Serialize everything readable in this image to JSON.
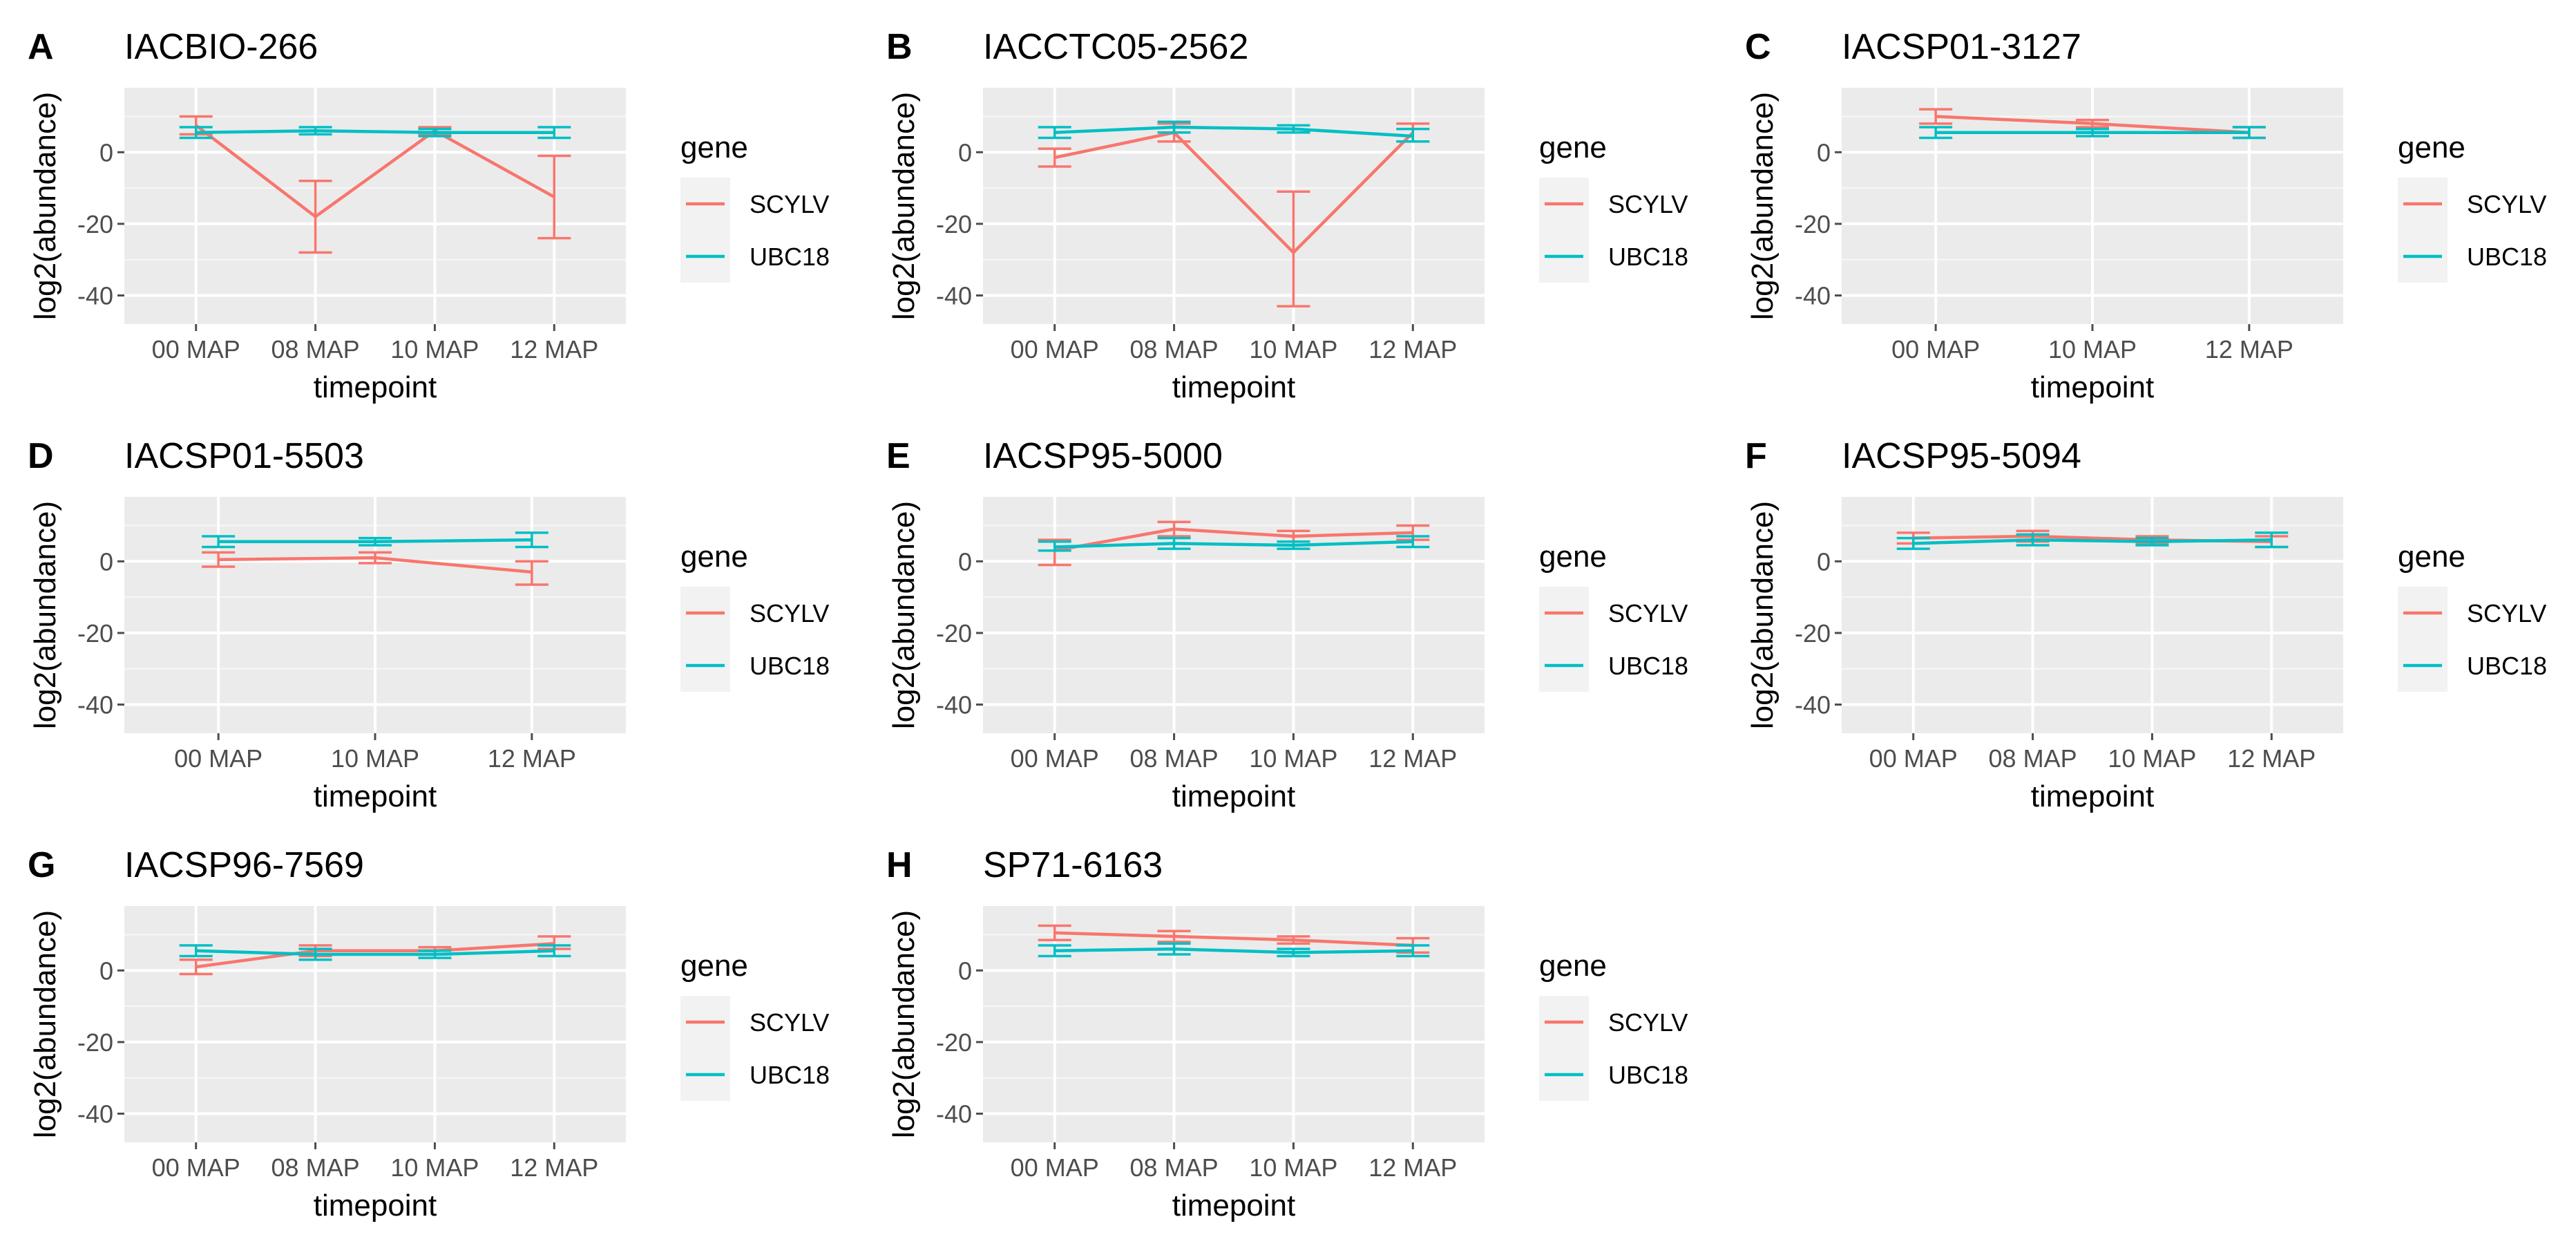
{
  "colors": {
    "panel_bg": "#EBEBEB",
    "grid": "#FFFFFF",
    "SCYLV": "#F8766D",
    "UBC18": "#00BFC4",
    "tick_text": "#4D4D4D",
    "text": "#000000",
    "legend_key_bg": "#F2F2F2"
  },
  "legend": {
    "title": "gene",
    "entries": [
      "SCYLV",
      "UBC18"
    ]
  },
  "chart_data": [
    {
      "panel": "A",
      "type": "line",
      "title": "IACBIO-266",
      "xlabel": "timepoint",
      "ylabel": "log2(abundance)",
      "categories": [
        "00 MAP",
        "08 MAP",
        "10 MAP",
        "12 MAP"
      ],
      "yticks": [
        0,
        -20,
        -40
      ],
      "ylim": [
        -48,
        18
      ],
      "grid": true,
      "series": [
        {
          "name": "SCYLV",
          "values": [
            7.5,
            -18,
            6,
            -12.5
          ],
          "lower": [
            5,
            -28,
            5,
            -24
          ],
          "upper": [
            10,
            -8,
            7,
            -1
          ]
        },
        {
          "name": "UBC18",
          "values": [
            5.5,
            6,
            5.5,
            5.5
          ],
          "lower": [
            4,
            5,
            4.5,
            4
          ],
          "upper": [
            7,
            7,
            6.5,
            7
          ]
        }
      ]
    },
    {
      "panel": "B",
      "type": "line",
      "title": "IACCTC05-2562",
      "xlabel": "timepoint",
      "ylabel": "log2(abundance)",
      "categories": [
        "00 MAP",
        "08 MAP",
        "10 MAP",
        "12 MAP"
      ],
      "yticks": [
        0,
        -20,
        -40
      ],
      "ylim": [
        -48,
        18
      ],
      "grid": true,
      "series": [
        {
          "name": "SCYLV",
          "values": [
            -1.5,
            5.5,
            -28,
            5.5
          ],
          "lower": [
            -4,
            3,
            -43,
            3
          ],
          "upper": [
            1,
            8,
            -11,
            8
          ]
        },
        {
          "name": "UBC18",
          "values": [
            5.5,
            7,
            6.5,
            4.5
          ],
          "lower": [
            4,
            5.5,
            5.5,
            3
          ],
          "upper": [
            7,
            8.5,
            7.5,
            6.5
          ]
        }
      ]
    },
    {
      "panel": "C",
      "type": "line",
      "title": "IACSP01-3127",
      "xlabel": "timepoint",
      "ylabel": "log2(abundance)",
      "categories": [
        "00 MAP",
        "10 MAP",
        "12 MAP"
      ],
      "yticks": [
        0,
        -20,
        -40
      ],
      "ylim": [
        -48,
        18
      ],
      "grid": true,
      "series": [
        {
          "name": "SCYLV",
          "values": [
            10,
            8,
            5.5
          ],
          "lower": [
            8,
            7,
            4
          ],
          "upper": [
            12,
            9,
            7
          ]
        },
        {
          "name": "UBC18",
          "values": [
            5.5,
            5.5,
            5.5
          ],
          "lower": [
            4,
            4.5,
            4
          ],
          "upper": [
            7,
            6.5,
            7
          ]
        }
      ]
    },
    {
      "panel": "D",
      "type": "line",
      "title": "IACSP01-5503",
      "xlabel": "timepoint",
      "ylabel": "log2(abundance)",
      "categories": [
        "00 MAP",
        "10 MAP",
        "12 MAP"
      ],
      "yticks": [
        0,
        -20,
        -40
      ],
      "ylim": [
        -48,
        18
      ],
      "grid": true,
      "series": [
        {
          "name": "SCYLV",
          "values": [
            0.5,
            1,
            -3
          ],
          "lower": [
            -1.5,
            -0.5,
            -6.5
          ],
          "upper": [
            2.5,
            2.5,
            0
          ]
        },
        {
          "name": "UBC18",
          "values": [
            5.5,
            5.5,
            6
          ],
          "lower": [
            4,
            4.5,
            4
          ],
          "upper": [
            7,
            6.5,
            8
          ]
        }
      ]
    },
    {
      "panel": "E",
      "type": "line",
      "title": "IACSP95-5000",
      "xlabel": "timepoint",
      "ylabel": "log2(abundance)",
      "categories": [
        "00 MAP",
        "08 MAP",
        "10 MAP",
        "12 MAP"
      ],
      "yticks": [
        0,
        -20,
        -40
      ],
      "ylim": [
        -48,
        18
      ],
      "grid": true,
      "series": [
        {
          "name": "SCYLV",
          "values": [
            3,
            9,
            7,
            8
          ],
          "lower": [
            -1,
            7,
            5.5,
            6
          ],
          "upper": [
            6,
            11,
            8.5,
            10
          ]
        },
        {
          "name": "UBC18",
          "values": [
            4,
            5,
            4.5,
            5.5
          ],
          "lower": [
            3,
            3.5,
            3.5,
            4
          ],
          "upper": [
            5.5,
            6.5,
            5.5,
            7
          ]
        }
      ]
    },
    {
      "panel": "F",
      "type": "line",
      "title": "IACSP95-5094",
      "xlabel": "timepoint",
      "ylabel": "log2(abundance)",
      "categories": [
        "00 MAP",
        "08 MAP",
        "10 MAP",
        "12 MAP"
      ],
      "yticks": [
        0,
        -20,
        -40
      ],
      "ylim": [
        -48,
        18
      ],
      "grid": true,
      "series": [
        {
          "name": "SCYLV",
          "values": [
            6.5,
            7,
            6,
            5.5
          ],
          "lower": [
            5,
            5.5,
            5,
            4
          ],
          "upper": [
            8,
            8.5,
            7,
            7
          ]
        },
        {
          "name": "UBC18",
          "values": [
            5,
            6,
            5.5,
            6
          ],
          "lower": [
            3.5,
            4.5,
            4.5,
            4
          ],
          "upper": [
            6.5,
            7.5,
            6.5,
            8
          ]
        }
      ]
    },
    {
      "panel": "G",
      "type": "line",
      "title": "IACSP96-7569",
      "xlabel": "timepoint",
      "ylabel": "log2(abundance)",
      "categories": [
        "00 MAP",
        "08 MAP",
        "10 MAP",
        "12 MAP"
      ],
      "yticks": [
        0,
        -20,
        -40
      ],
      "ylim": [
        -48,
        18
      ],
      "grid": true,
      "series": [
        {
          "name": "SCYLV",
          "values": [
            1,
            5.5,
            5.5,
            7.5
          ],
          "lower": [
            -1,
            4,
            4.5,
            6
          ],
          "upper": [
            3,
            7,
            6.5,
            9.5
          ]
        },
        {
          "name": "UBC18",
          "values": [
            5.5,
            4.5,
            4.5,
            5.5
          ],
          "lower": [
            4,
            3,
            3.5,
            4
          ],
          "upper": [
            7,
            6,
            5.5,
            7
          ]
        }
      ]
    },
    {
      "panel": "H",
      "type": "line",
      "title": "SP71-6163",
      "xlabel": "timepoint",
      "ylabel": "log2(abundance)",
      "categories": [
        "00 MAP",
        "08 MAP",
        "10 MAP",
        "12 MAP"
      ],
      "yticks": [
        0,
        -20,
        -40
      ],
      "ylim": [
        -48,
        18
      ],
      "grid": true,
      "series": [
        {
          "name": "SCYLV",
          "values": [
            10.5,
            9.5,
            8.5,
            7
          ],
          "lower": [
            8.5,
            8,
            7.5,
            5
          ],
          "upper": [
            12.5,
            11,
            9.5,
            9
          ]
        },
        {
          "name": "UBC18",
          "values": [
            5.5,
            6,
            5,
            5.5
          ],
          "lower": [
            4,
            4.5,
            4,
            4
          ],
          "upper": [
            7,
            7.5,
            6,
            7
          ]
        }
      ]
    }
  ]
}
